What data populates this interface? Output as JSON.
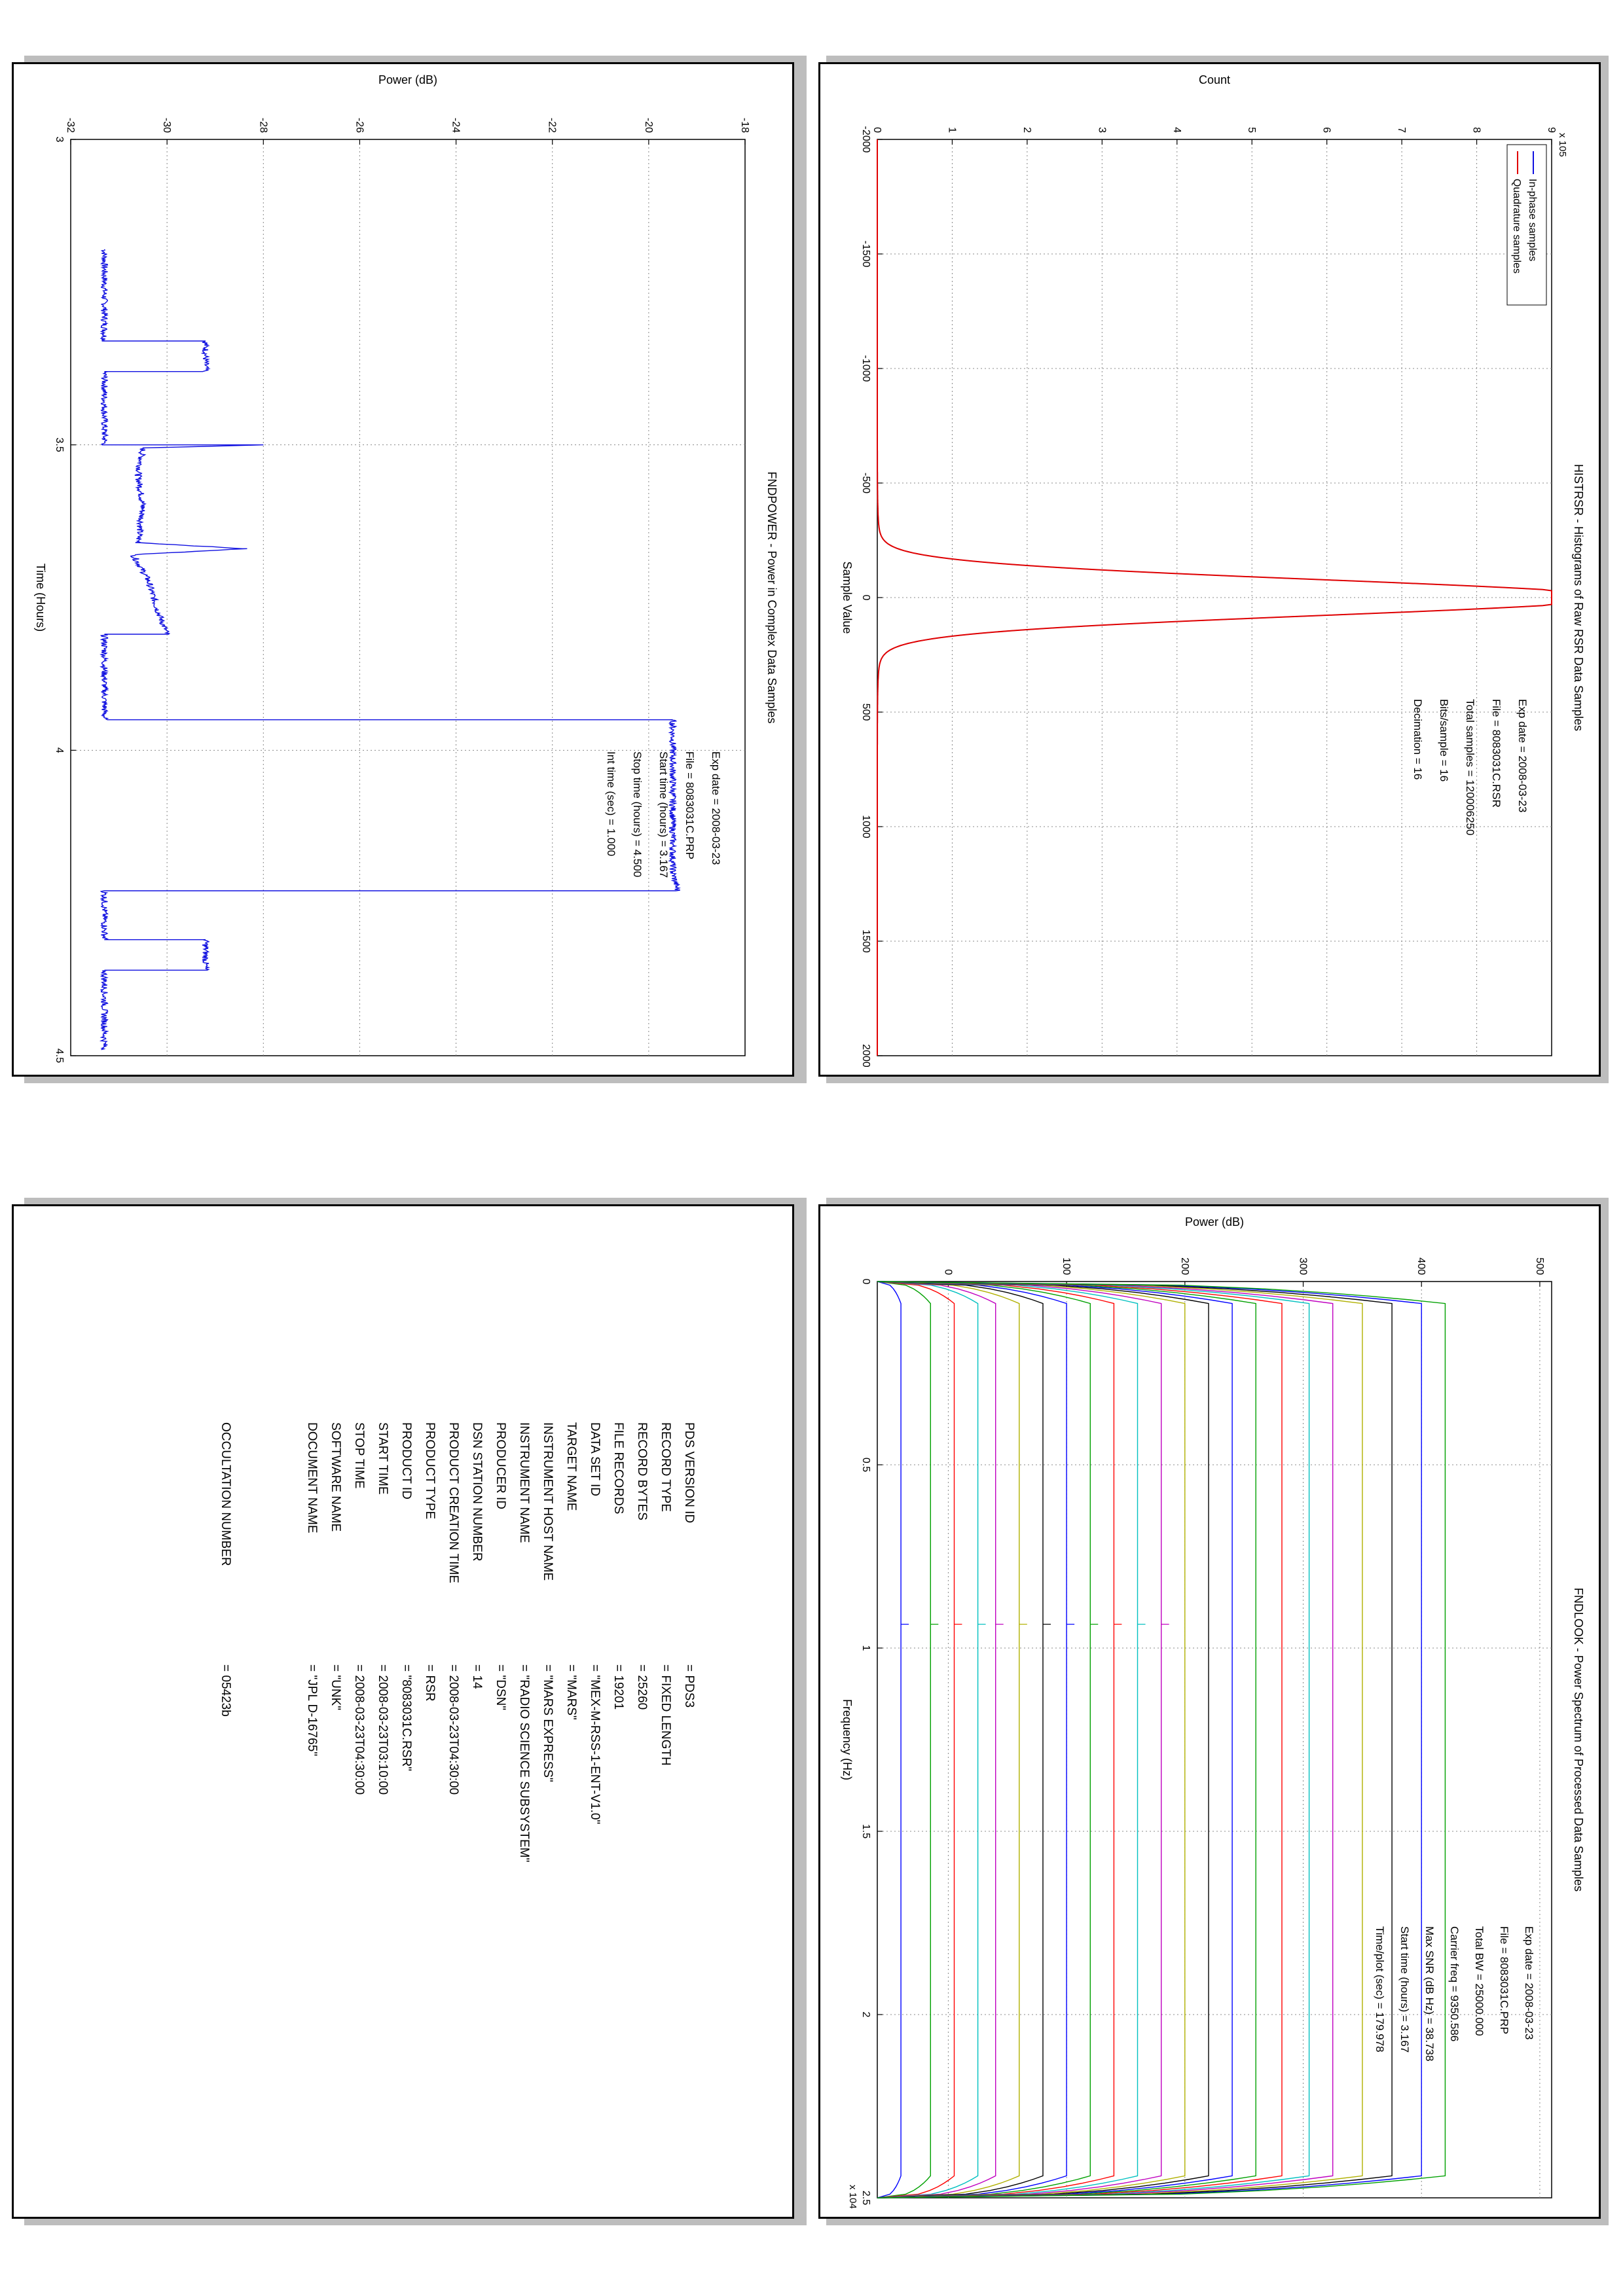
{
  "colors": {
    "blue": "#1010e0",
    "red": "#e00000",
    "black": "#000000",
    "grid": "#9a9a9a"
  },
  "histrsr": {
    "title": "HISTRSR - Histograms of Raw RSR Data Samples",
    "info": [
      "Exp date = 2008-03-23",
      "File = 8083031C.RSR",
      "Total samples =  120006250",
      "Bits/sample    =        16",
      "Decimation    =        16"
    ],
    "chart_data": {
      "type": "line",
      "title": "HISTRSR - Histograms of Raw RSR Data Samples",
      "xlabel": "Sample Value",
      "ylabel": "Count",
      "y_multiplier": "x 10^5",
      "xlim": [
        -2000,
        2000
      ],
      "ylim": [
        0,
        9
      ],
      "xticks": [
        -2000,
        -1500,
        -1000,
        -500,
        0,
        500,
        1000,
        1500,
        2000
      ],
      "yticks": [
        0,
        1,
        2,
        3,
        4,
        5,
        6,
        7,
        8,
        9
      ],
      "grid": true,
      "legend_position": "top-left",
      "series": [
        {
          "name": "In-phase samples",
          "color": "#1010e0",
          "sigma": 78,
          "peak": 9.4
        },
        {
          "name": "Quadrature samples",
          "color": "#e00000",
          "sigma": 78,
          "peak": 9.4
        }
      ]
    }
  },
  "fndpower": {
    "title": "FNDPOWER - Power in Complex Data Samples",
    "info": [
      "Exp date = 2008-03-23",
      "File = 8083031C.PRP",
      "Start time (hours) =  3.167",
      "Stop time (hours)  =  4.500",
      "Int time (sec)  =     1.000"
    ],
    "chart_data": {
      "type": "line",
      "title": "FNDPOWER - Power in Complex Data Samples",
      "xlabel": "Time (Hours)",
      "ylabel": "Power (dB)",
      "xlim": [
        3,
        4.5
      ],
      "ylim": [
        -32,
        -18
      ],
      "xticks": [
        "3",
        "3.5",
        "4",
        "4.5"
      ],
      "yticks": [
        -32,
        -30,
        -28,
        -26,
        -24,
        -22,
        -20,
        -18
      ],
      "grid": true,
      "series": [
        {
          "name": "",
          "color": "#1010e0",
          "points": [
            [
              3.18,
              -31.3
            ],
            [
              3.33,
              -31.3
            ],
            [
              3.33,
              -29.2
            ],
            [
              3.38,
              -29.2
            ],
            [
              3.38,
              -31.3
            ],
            [
              3.49,
              -31.3
            ],
            [
              3.5,
              -31.3
            ],
            [
              3.5,
              -28.0
            ],
            [
              3.505,
              -30.5
            ],
            [
              3.55,
              -30.6
            ],
            [
              3.6,
              -30.5
            ],
            [
              3.66,
              -30.6
            ],
            [
              3.67,
              -28.4
            ],
            [
              3.68,
              -30.7
            ],
            [
              3.72,
              -30.4
            ],
            [
              3.77,
              -30.2
            ],
            [
              3.81,
              -30.0
            ],
            [
              3.81,
              -31.3
            ],
            [
              3.95,
              -31.3
            ],
            [
              3.95,
              -19.5
            ],
            [
              4.2,
              -19.5
            ],
            [
              4.23,
              -19.4
            ],
            [
              4.23,
              -31.3
            ],
            [
              4.31,
              -31.3
            ],
            [
              4.31,
              -29.2
            ],
            [
              4.36,
              -29.2
            ],
            [
              4.36,
              -31.3
            ],
            [
              4.49,
              -31.3
            ]
          ]
        }
      ]
    }
  },
  "fndlook": {
    "title": "FNDLOOK - Power Spectrum of Processed Data Samples",
    "info": [
      "Exp date = 2008-03-23",
      "File = 8083031C.PRP",
      "Total BW =       25000.000",
      "Carrier freq =     9350.586",
      "Max SNR (dB Hz) =    38.738",
      "Start time (hours) =  3.167",
      "Time/plot (sec) =     179.978"
    ],
    "chart_data": {
      "type": "line",
      "title": "FNDLOOK - Power Spectrum of Processed Data Samples",
      "xlabel": "Frequency (Hz)",
      "ylabel": "Power (dB)",
      "x_multiplier": "x 10^4",
      "xlim": [
        0,
        2.5
      ],
      "ylim": [
        -60,
        510
      ],
      "xticks": [
        "0",
        "0.5",
        "1",
        "1.5",
        "2",
        "2.5"
      ],
      "yticks": [
        0,
        100,
        200,
        300,
        400,
        500
      ],
      "grid": true,
      "carrier_x": 0.935,
      "series_colors": [
        "#0000ff",
        "#00a000",
        "#ff0000",
        "#00c0c0",
        "#c000c0",
        "#b0b000",
        "#000000"
      ],
      "series_plateaus": [
        -40,
        -15,
        5,
        25,
        40,
        60,
        80,
        100,
        120,
        140,
        160,
        180,
        200,
        220,
        240,
        260,
        282,
        305,
        325,
        350,
        375,
        400,
        420
      ]
    }
  },
  "label": {
    "rows": [
      {
        "key": "PDS VERSION ID",
        "value": "= PDS3"
      },
      {
        "key": "RECORD TYPE",
        "value": "= FIXED LENGTH"
      },
      {
        "key": "RECORD BYTES",
        "value": "= 25260"
      },
      {
        "key": "FILE RECORDS",
        "value": "= 19201"
      },
      {
        "key": "DATA SET ID",
        "value": "= \"MEX-M-RSS-1-ENT-V1.0\""
      },
      {
        "key": "TARGET NAME",
        "value": "= \"MARS\""
      },
      {
        "key": "INSTRUMENT HOST NAME",
        "value": "= \"MARS EXPRESS\""
      },
      {
        "key": "INSTRUMENT NAME",
        "value": "= \"RADIO SCIENCE SUBSYSTEM\""
      },
      {
        "key": "PRODUCER ID",
        "value": "= \"DSN\""
      },
      {
        "key": "DSN STATION NUMBER",
        "value": "= 14"
      },
      {
        "key": "PRODUCT CREATION TIME",
        "value": "= 2008-03-23T04:30:00"
      },
      {
        "key": "PRODUCT TYPE",
        "value": "= RSR"
      },
      {
        "key": "PRODUCT ID",
        "value": "= \"8083031C.RSR\""
      },
      {
        "key": "START TIME",
        "value": "= 2008-03-23T03:10:00"
      },
      {
        "key": "STOP TIME",
        "value": "= 2008-03-23T04:30:00"
      },
      {
        "key": "SOFTWARE NAME",
        "value": "= \"UNK\""
      },
      {
        "key": "DOCUMENT NAME",
        "value": "= \"JPL D-16765\""
      },
      {
        "key": "OCCULTATION NUMBER",
        "value": "= 05423b"
      }
    ]
  }
}
